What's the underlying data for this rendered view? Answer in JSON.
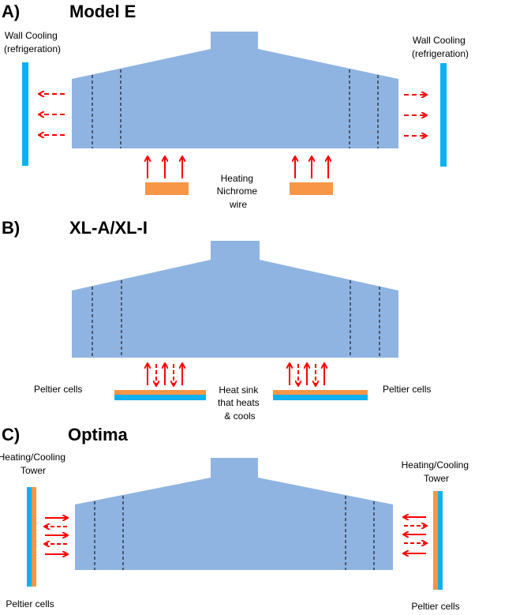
{
  "colors": {
    "chamber": "#90b4e2",
    "cooling": "#10b0ee",
    "heating": "#f79646",
    "arrow": "#ff0000"
  },
  "panels": [
    {
      "letter": "A)",
      "title": "Model E",
      "left_label": [
        "Wall Cooling",
        "(refrigeration)"
      ],
      "right_label": [
        "Wall Cooling",
        "(refrigeration)"
      ],
      "center_label": [
        "Heating",
        "Nichrome",
        "wire"
      ]
    },
    {
      "letter": "B)",
      "title": "XL-A/XL-I",
      "left_label": "Peltier cells",
      "right_label": "Peltier cells",
      "center_label": [
        "Heat sink",
        "that heats",
        "& cools"
      ]
    },
    {
      "letter": "C)",
      "title": "Optima",
      "left_top_label": [
        "Heating/Cooling",
        "Tower"
      ],
      "right_top_label": [
        "Heating/Cooling",
        "Tower"
      ],
      "left_bottom_label": "Peltier cells",
      "right_bottom_label": "Peltier cells"
    }
  ]
}
